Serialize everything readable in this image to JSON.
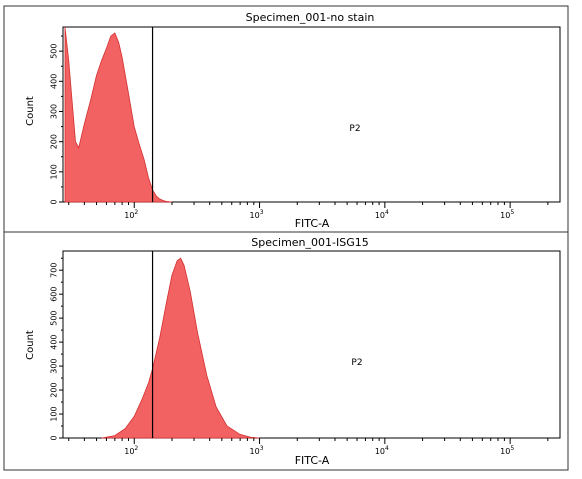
{
  "chart_data": [
    {
      "type": "area",
      "title": "Specimen_001-no stain",
      "xlabel": "FITC-A",
      "ylabel": "Count",
      "x_scale": "log",
      "xlim": [
        27,
        250000
      ],
      "ylim": [
        0,
        580
      ],
      "y_ticks": [
        0,
        100,
        200,
        300,
        400,
        500
      ],
      "x_tick_labels": [
        {
          "value": 100,
          "base": "10",
          "exp": "2"
        },
        {
          "value": 1000,
          "base": "10",
          "exp": "3"
        },
        {
          "value": 10000,
          "base": "10",
          "exp": "4"
        },
        {
          "value": 100000,
          "base": "10",
          "exp": "5"
        }
      ],
      "gate": {
        "name": "P2",
        "x_start": 140
      },
      "color": "#f26262",
      "series": [
        {
          "x": [
            28,
            30,
            32,
            34,
            36,
            40,
            45,
            50,
            55,
            60,
            65,
            70,
            75,
            80,
            90,
            100,
            110,
            120,
            130,
            140,
            150,
            160,
            170,
            180,
            200
          ],
          "y": [
            580,
            470,
            330,
            200,
            180,
            260,
            340,
            420,
            470,
            510,
            550,
            560,
            530,
            480,
            360,
            250,
            190,
            140,
            80,
            40,
            20,
            10,
            5,
            2,
            0
          ]
        }
      ]
    },
    {
      "type": "area",
      "title": "Specimen_001-ISG15",
      "xlabel": "FITC-A",
      "ylabel": "Count",
      "x_scale": "log",
      "xlim": [
        27,
        250000
      ],
      "ylim": [
        0,
        780
      ],
      "y_ticks": [
        0,
        100,
        200,
        300,
        400,
        500,
        600,
        700
      ],
      "x_tick_labels": [
        {
          "value": 100,
          "base": "10",
          "exp": "2"
        },
        {
          "value": 1000,
          "base": "10",
          "exp": "3"
        },
        {
          "value": 10000,
          "base": "10",
          "exp": "4"
        },
        {
          "value": 100000,
          "base": "10",
          "exp": "5"
        }
      ],
      "gate": {
        "name": "P2",
        "x_start": 140
      },
      "color": "#f26262",
      "series": [
        {
          "x": [
            55,
            70,
            85,
            100,
            115,
            130,
            140,
            160,
            180,
            200,
            220,
            235,
            250,
            280,
            320,
            380,
            450,
            550,
            700,
            850,
            1000
          ],
          "y": [
            0,
            10,
            40,
            90,
            160,
            230,
            290,
            420,
            560,
            680,
            740,
            750,
            720,
            610,
            440,
            260,
            130,
            50,
            15,
            3,
            0
          ]
        }
      ]
    }
  ]
}
